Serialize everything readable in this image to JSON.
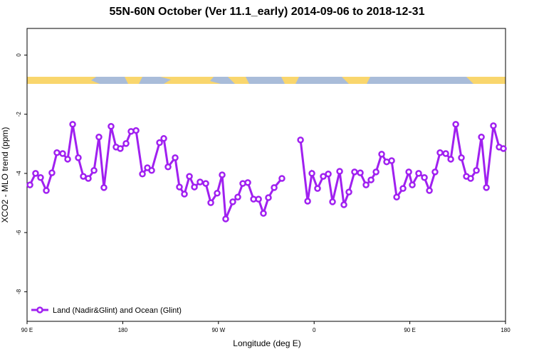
{
  "chart_data": {
    "type": "line",
    "title": "55N-60N October (Ver 11.1_early)   2014-09-06 to 2018-12-31",
    "x_label": "Longitude (deg E)",
    "y_label": "XCO2 - MLO trend (ppm)",
    "xlim": [
      90,
      540
    ],
    "xticks": [
      {
        "value": 90,
        "label": "90 E"
      },
      {
        "value": 180,
        "label": "180"
      },
      {
        "value": 270,
        "label": "90 W"
      },
      {
        "value": 360,
        "label": "0"
      },
      {
        "value": 450,
        "label": "90 E"
      },
      {
        "value": 540,
        "label": "180"
      }
    ],
    "ylim": [
      -9,
      0.9
    ],
    "yticks": [
      0,
      -2,
      -4,
      -6,
      -8
    ],
    "legend": "bottom-left",
    "x": [
      92.7,
      98.0,
      102.7,
      108.1,
      113.4,
      118.1,
      123.5,
      128.2,
      132.9,
      138.2,
      142.9,
      147.6,
      153.0,
      157.6,
      162.3,
      169.0,
      173.7,
      177.7,
      183.1,
      187.8,
      192.5,
      198.5,
      203.2,
      207.2,
      214.6,
      218.6,
      222.6,
      229.3,
      233.3,
      238.0,
      242.7,
      247.4,
      252.7,
      258.1,
      262.8,
      268.8,
      273.5,
      276.8,
      283.5,
      288.2,
      292.9,
      297.6,
      303.0,
      307.7,
      312.3,
      317.0,
      322.4,
      329.7,
      338.7,
      347.2,
      353.9,
      357.9,
      363.2,
      368.6,
      373.3,
      377.3,
      384.0,
      388.0,
      392.7,
      398.0,
      403.4,
      408.8,
      413.5,
      418.2,
      423.5,
      428.2,
      432.9,
      437.6,
      443.6,
      449.0,
      452.3,
      458.3,
      463.7,
      468.4,
      473.7,
      478.4,
      483.8,
      488.5,
      493.2,
      498.5,
      503.2,
      507.2,
      512.6,
      517.3,
      522.0,
      528.6,
      534.0,
      538.0
    ],
    "series": [
      {
        "name": "Land (Nadir&Glint) and Ocean (Glint)",
        "color": "#a020f0",
        "values": [
          -4.39,
          -4.0,
          -4.14,
          -4.58,
          -3.98,
          -3.3,
          -3.33,
          -3.52,
          -2.34,
          -3.47,
          -4.1,
          -4.17,
          -3.9,
          -2.77,
          -4.48,
          -2.41,
          -3.11,
          -3.16,
          -2.99,
          -2.58,
          -2.55,
          -4.02,
          -3.81,
          -3.9,
          -2.96,
          -2.82,
          -3.78,
          -3.47,
          -4.46,
          -4.7,
          -4.1,
          -4.46,
          -4.29,
          -4.34,
          -4.99,
          -4.67,
          -4.05,
          -5.54,
          -4.96,
          -4.8,
          -4.34,
          -4.31,
          -4.87,
          -4.87,
          -5.35,
          -4.82,
          -4.48,
          -4.17,
          null,
          -2.87,
          -4.94,
          -4.0,
          -4.51,
          -4.1,
          -4.02,
          -4.96,
          -3.93,
          -5.06,
          -4.63,
          -3.95,
          -3.98,
          -4.39,
          -4.22,
          -3.95,
          -3.35,
          -3.61,
          -3.57,
          -4.8,
          -4.51,
          -3.95,
          -4.39,
          -4.0,
          -4.14,
          -4.58,
          -3.95,
          -3.3,
          -3.33,
          -3.52,
          -2.34,
          -3.47,
          -4.1,
          -4.17,
          -3.9,
          -2.77,
          -4.48,
          -2.39,
          -3.11,
          -3.16
        ]
      }
    ]
  }
}
